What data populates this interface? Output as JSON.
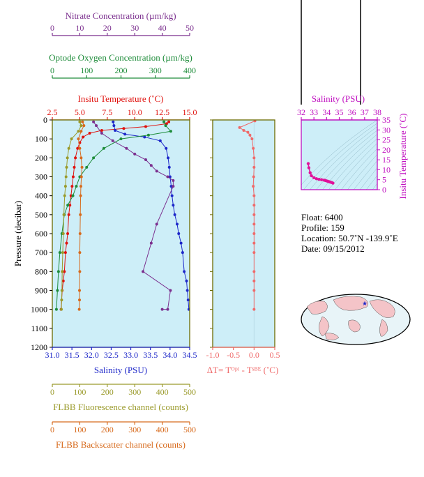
{
  "colors": {
    "nitrate": "#7b2f8e",
    "oxygen": "#1e8c3a",
    "temperature": "#e0120e",
    "salinity": "#1d27c9",
    "fluorescence": "#9a9a2a",
    "backscatter": "#d76a1c",
    "delta": "#ef6a6a",
    "ts": "#e0129a",
    "plot_bg": "#cdeef8",
    "axis_frame": "#6b6b00"
  },
  "axes": {
    "nitrate": {
      "label": "Nitrate Concentration (µm/kg)",
      "ticks": [
        "0",
        "10",
        "20",
        "30",
        "40",
        "50"
      ],
      "range": [
        0,
        50
      ]
    },
    "oxygen": {
      "label": "Optode Oxygen Concentration (µm/kg)",
      "ticks": [
        "0",
        "100",
        "200",
        "300",
        "400"
      ],
      "range": [
        0,
        400
      ]
    },
    "temperature": {
      "label": "Insitu Temperature (˚C)",
      "ticks": [
        "2.5",
        "5.0",
        "7.5",
        "10.0",
        "12.5",
        "15.0"
      ],
      "range": [
        2.5,
        15.0
      ]
    },
    "pressure": {
      "label": "Pressure (decibar)",
      "ticks": [
        "0",
        "100",
        "200",
        "300",
        "400",
        "500",
        "600",
        "700",
        "800",
        "900",
        "1000",
        "1100",
        "1200"
      ],
      "range": [
        0,
        1200
      ]
    },
    "salinity": {
      "label": "Salinity (PSU)",
      "ticks": [
        "31.0",
        "31.5",
        "32.0",
        "32.5",
        "33.0",
        "33.5",
        "34.0",
        "34.5"
      ],
      "range": [
        31.0,
        34.5
      ]
    },
    "fluorescence": {
      "label": "FLBB Fluorescence channel (counts)",
      "ticks": [
        "0",
        "100",
        "200",
        "300",
        "400",
        "500"
      ],
      "range": [
        0,
        500
      ]
    },
    "backscatter": {
      "label": "FLBB Backscatter channel (counts)",
      "ticks": [
        "0",
        "100",
        "200",
        "300",
        "400",
        "500"
      ],
      "range": [
        0,
        500
      ]
    },
    "delta": {
      "label": "ΔT= Tᴼᵖᵗ - Tˢᴮᴱ (˚C)",
      "ticks": [
        "-1.0",
        "-0.5",
        "0.0",
        "0.5"
      ],
      "range": [
        -1.0,
        0.5
      ]
    },
    "ts_salinity": {
      "label": "Salinity (PSU)",
      "ticks": [
        "32",
        "33",
        "34",
        "35",
        "36",
        "37",
        "38"
      ],
      "range": [
        32,
        38
      ]
    },
    "ts_temperature": {
      "label": "Insitu Temperature (˚C)",
      "ticks": [
        "0",
        "5",
        "10",
        "15",
        "20",
        "25",
        "30",
        "35"
      ],
      "range": [
        0,
        35
      ]
    }
  },
  "info": {
    "float": "Float:  6400",
    "profile": "Profile:  159",
    "location": "Location:  50.7˚N  -139.9˚E",
    "date": "Date:  09/15/2012"
  },
  "chart_data": [
    {
      "type": "line",
      "title": "",
      "series": [
        {
          "name": "Insitu Temperature",
          "axis": "temperature",
          "y_axis": "pressure",
          "x": [
            13.1,
            12.9,
            11.0,
            9.0,
            7.0,
            5.9,
            5.3,
            5.0,
            4.8,
            4.6,
            4.5,
            4.4,
            4.3,
            4.2,
            4.1,
            4.0,
            3.9,
            3.8,
            3.7,
            3.6,
            3.5,
            3.4,
            3.3
          ],
          "y": [
            10,
            20,
            35,
            45,
            55,
            70,
            90,
            120,
            150,
            200,
            250,
            300,
            350,
            400,
            450,
            500,
            600,
            650,
            700,
            800,
            850,
            900,
            1000
          ]
        },
        {
          "name": "Salinity",
          "axis": "salinity",
          "y_axis": "pressure",
          "x": [
            32.55,
            32.57,
            32.6,
            32.85,
            33.35,
            33.75,
            33.9,
            33.95,
            33.98,
            34.0,
            34.03,
            34.05,
            34.08,
            34.12,
            34.18,
            34.22,
            34.28,
            34.32,
            34.36,
            34.42,
            34.44,
            34.46,
            34.48
          ],
          "y": [
            10,
            30,
            55,
            75,
            90,
            110,
            150,
            200,
            250,
            300,
            350,
            400,
            450,
            500,
            550,
            600,
            650,
            700,
            800,
            850,
            900,
            950,
            1000
          ]
        },
        {
          "name": "Optode Oxygen",
          "axis": "oxygen",
          "y_axis": "pressure",
          "x": [
            325,
            330,
            345,
            280,
            200,
            150,
            120,
            100,
            80,
            70,
            60,
            45,
            35,
            28,
            22,
            18,
            15,
            12
          ],
          "y": [
            10,
            30,
            60,
            80,
            100,
            150,
            200,
            250,
            300,
            350,
            400,
            450,
            500,
            600,
            700,
            800,
            900,
            1000
          ]
        },
        {
          "name": "Nitrate",
          "axis": "nitrate",
          "y_axis": "pressure",
          "x": [
            15,
            16,
            18,
            22,
            27,
            30,
            34,
            36,
            38,
            42,
            44,
            44,
            38,
            36,
            33,
            43,
            42,
            40
          ],
          "y": [
            10,
            30,
            70,
            110,
            150,
            180,
            210,
            240,
            270,
            300,
            320,
            350,
            550,
            650,
            800,
            900,
            1000,
            1000
          ]
        },
        {
          "name": "FLBB Fluorescence",
          "axis": "fluorescence",
          "y_axis": "pressure",
          "x": [
            100,
            105,
            95,
            70,
            60,
            55,
            52,
            50,
            48,
            45,
            42,
            40,
            38,
            36,
            35,
            34,
            33
          ],
          "y": [
            10,
            30,
            60,
            100,
            150,
            200,
            250,
            300,
            350,
            400,
            500,
            600,
            700,
            800,
            900,
            950,
            1000
          ]
        },
        {
          "name": "FLBB Backscatter",
          "axis": "backscatter",
          "y_axis": "pressure",
          "x": [
            110,
            115,
            105,
            95,
            100,
            105,
            108,
            106,
            104,
            103,
            102,
            101,
            100,
            100,
            99,
            99,
            98
          ],
          "y": [
            10,
            30,
            60,
            100,
            150,
            200,
            250,
            300,
            350,
            400,
            500,
            600,
            700,
            800,
            900,
            950,
            1000
          ]
        }
      ]
    },
    {
      "type": "scatter",
      "title": "",
      "xlabel": "ΔT= Tᴼᵖᵗ - Tˢᴮᴱ (˚C)",
      "ylabel": "Pressure (decibar)",
      "xlim": [
        -1.0,
        0.5
      ],
      "ylim": [
        1200,
        0
      ],
      "series": [
        {
          "x": [
            0.02,
            -0.35,
            -0.25,
            -0.15,
            -0.1,
            -0.05,
            -0.02,
            0.0,
            0.0,
            -0.01,
            -0.02,
            0.0,
            0.0,
            0.0,
            0.0,
            0.0,
            0.0,
            0.0,
            0.0,
            0.0,
            0.0,
            0.0
          ],
          "y": [
            5,
            40,
            55,
            65,
            80,
            100,
            150,
            200,
            250,
            300,
            350,
            400,
            450,
            500,
            550,
            600,
            650,
            700,
            800,
            850,
            900,
            1000
          ]
        }
      ]
    },
    {
      "type": "scatter",
      "title": "",
      "xlabel": "Salinity (PSU)",
      "ylabel": "Insitu Temperature (˚C)",
      "xlim": [
        32,
        38
      ],
      "ylim": [
        0,
        35
      ],
      "series": [
        {
          "x": [
            32.55,
            32.6,
            32.7,
            32.8,
            33.0,
            33.2,
            33.4,
            33.6,
            33.8,
            33.9,
            34.0,
            34.1,
            34.2,
            34.3,
            34.4,
            34.5
          ],
          "y": [
            13.1,
            11.0,
            8.5,
            7.0,
            6.0,
            5.5,
            5.2,
            5.0,
            4.8,
            4.6,
            4.4,
            4.2,
            4.0,
            3.8,
            3.6,
            3.3
          ]
        }
      ]
    }
  ]
}
